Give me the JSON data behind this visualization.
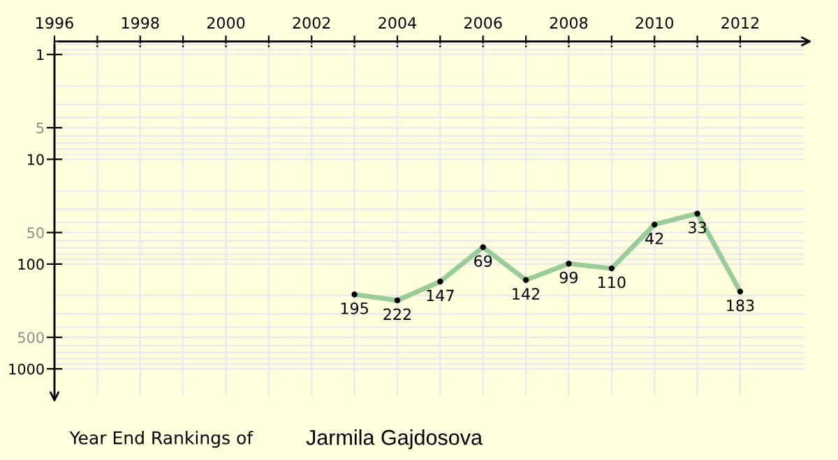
{
  "chart_data": {
    "type": "line",
    "title": "Year End Rankings of",
    "subtitle": "Jarmila Gajdosova",
    "x": [
      2003,
      2004,
      2005,
      2006,
      2007,
      2008,
      2009,
      2010,
      2011,
      2012
    ],
    "series": [
      {
        "color": "#99cc99",
        "values": [
          195,
          222,
          147,
          69,
          142,
          99,
          110,
          42,
          33,
          183
        ]
      }
    ],
    "xlim": [
      1996,
      2013.5
    ],
    "xticks": [
      1996,
      {
        "value": 1997,
        "label": null
      },
      1998,
      {
        "value": 1999,
        "label": null
      },
      2000,
      {
        "value": 2001,
        "label": null
      },
      2002,
      {
        "value": 2003,
        "label": null
      },
      2004,
      {
        "value": 2005,
        "label": null
      },
      2006,
      {
        "value": 2007,
        "label": null
      },
      2008,
      {
        "value": 2009,
        "label": null
      },
      2010,
      {
        "value": 2011,
        "label": null
      },
      2012
    ],
    "ylim": [
      1800,
      0.75
    ],
    "log": true,
    "yticks": [
      1,
      5,
      10,
      50,
      100,
      500,
      1000
    ],
    "grid": true,
    "marker": "circle",
    "line_style": "solid",
    "data_labels": true
  }
}
